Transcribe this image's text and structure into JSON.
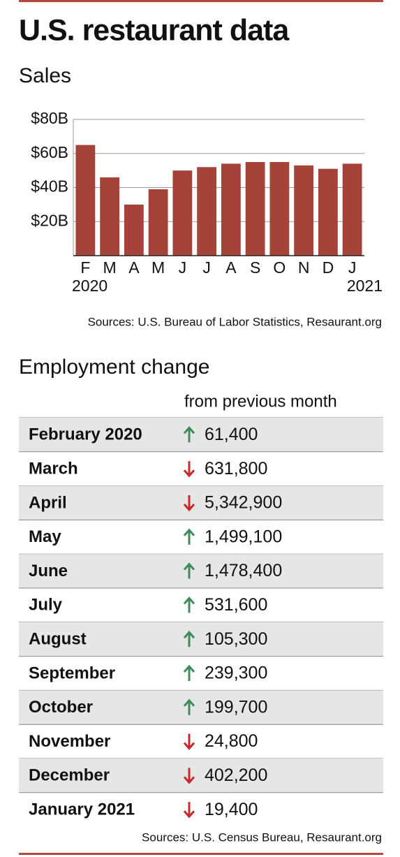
{
  "title": "U.S. restaurant data",
  "chart_data": {
    "type": "bar",
    "title": "Sales",
    "categories": [
      "F",
      "M",
      "A",
      "M",
      "J",
      "J",
      "A",
      "S",
      "O",
      "N",
      "D",
      "J"
    ],
    "category_years": [
      "2020",
      null,
      null,
      null,
      null,
      null,
      null,
      null,
      null,
      null,
      null,
      "2021"
    ],
    "values": [
      65,
      46,
      30,
      39,
      50,
      52,
      54,
      55,
      55,
      53,
      51,
      54
    ],
    "color": "#a5423a",
    "ylim": [
      0,
      80
    ],
    "yticks": [
      {
        "value": 20,
        "label": "$20B"
      },
      {
        "value": 40,
        "label": "$40B"
      },
      {
        "value": 60,
        "label": "$60B"
      },
      {
        "value": 80,
        "label": "$80B"
      }
    ],
    "grid": true,
    "source": "Sources: U.S. Bureau of Labor Statistics, Resaurant.org"
  },
  "employment": {
    "title": "Employment change",
    "column_header": "from previous month",
    "direction_colors": {
      "up": "#3d8c5c",
      "down": "#c62a2a"
    },
    "rows": [
      {
        "month": "February 2020",
        "direction": "up",
        "change": "61,400"
      },
      {
        "month": "March",
        "direction": "down",
        "change": "631,800"
      },
      {
        "month": "April",
        "direction": "down",
        "change": "5,342,900"
      },
      {
        "month": "May",
        "direction": "up",
        "change": "1,499,100"
      },
      {
        "month": "June",
        "direction": "up",
        "change": "1,478,400"
      },
      {
        "month": "July",
        "direction": "up",
        "change": "531,600"
      },
      {
        "month": "August",
        "direction": "up",
        "change": "105,300"
      },
      {
        "month": "September",
        "direction": "up",
        "change": "239,300"
      },
      {
        "month": "October",
        "direction": "up",
        "change": "199,700"
      },
      {
        "month": "November",
        "direction": "down",
        "change": "24,800"
      },
      {
        "month": "December",
        "direction": "down",
        "change": "402,200"
      },
      {
        "month": "January 2021",
        "direction": "down",
        "change": "19,400"
      }
    ],
    "source": "Sources: U.S. Census Bureau, Resaurant.org"
  }
}
